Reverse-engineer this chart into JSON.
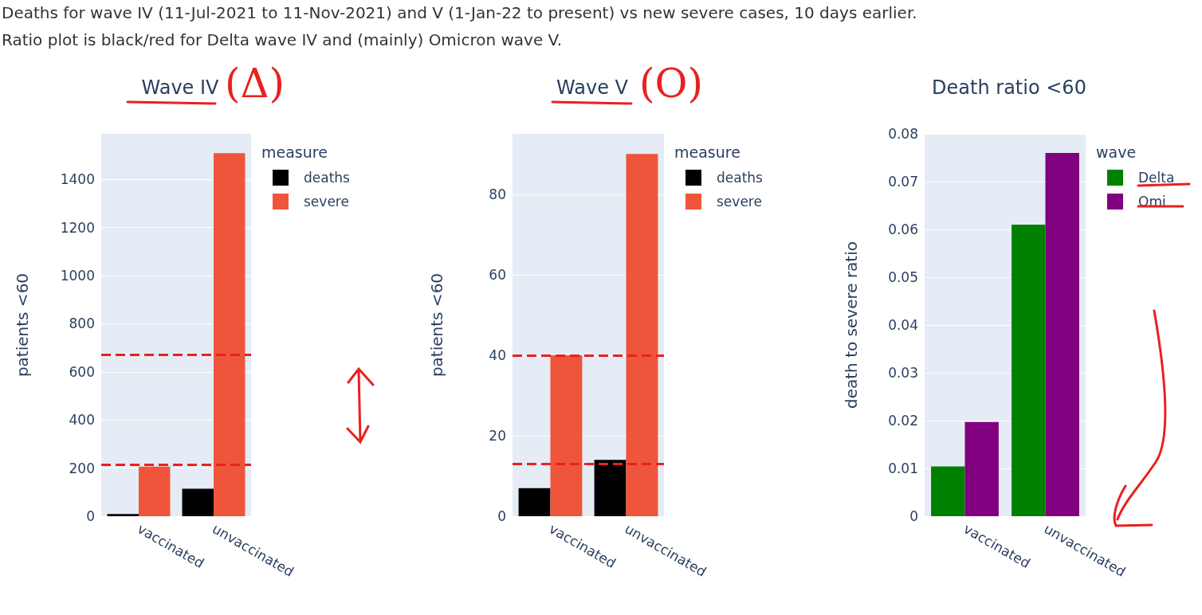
{
  "chart_data": [
    {
      "type": "other",
      "annotations": [
        "Deaths for wave IV (11-Jul-2021 to 11-Nov-2021) and V (1-Jan-22 to present) vs new severe cases, 10 days earlier.",
        "Ratio plot is black/red for Delta wave IV and (mainly) Omicron wave V."
      ]
    },
    {
      "type": "bar",
      "title": "Wave IV",
      "annotations": [
        "(Δ)"
      ],
      "ylabel": "patients <60",
      "legend_title": "measure",
      "legend": "top right",
      "grid": "y",
      "categories": [
        "vaccinated",
        "unvaccinated"
      ],
      "series": [
        {
          "name": "deaths",
          "color": "#000000",
          "values": [
            9,
            114
          ]
        },
        {
          "name": "severe",
          "color": "#ef553b",
          "values": [
            206,
            1510
          ]
        }
      ],
      "ylim": [
        0,
        1590
      ],
      "yticks": [
        0,
        200,
        400,
        600,
        800,
        1000,
        1200,
        1400
      ],
      "ref_lines": [
        {
          "axis": "y",
          "value": 671,
          "color": "#e8211f",
          "line_style": "dashed"
        },
        {
          "axis": "y",
          "value": 213,
          "color": "#e8211f",
          "line_style": "dashed"
        }
      ]
    },
    {
      "type": "bar",
      "title": "Wave V",
      "annotations": [
        "(O)"
      ],
      "ylabel": "patients <60",
      "legend_title": "measure",
      "legend": "top right",
      "grid": "y",
      "categories": [
        "vaccinated",
        "unvaccinated"
      ],
      "series": [
        {
          "name": "deaths",
          "color": "#000000",
          "values": [
            7,
            14
          ]
        },
        {
          "name": "severe",
          "color": "#ef553b",
          "values": [
            40,
            90
          ]
        }
      ],
      "ylim": [
        0,
        95
      ],
      "yticks": [
        0,
        20,
        40,
        60,
        80
      ],
      "ref_lines": [
        {
          "axis": "y",
          "value": 40,
          "color": "#e8211f",
          "line_style": "dashed"
        },
        {
          "axis": "y",
          "value": 13,
          "color": "#e8211f",
          "line_style": "dashed"
        }
      ]
    },
    {
      "type": "bar",
      "title": "Death ratio <60",
      "ylabel": "death to severe ratio",
      "legend_title": "wave",
      "legend": "top right",
      "grid": "y",
      "categories": [
        "vaccinated",
        "unvaccinated"
      ],
      "series": [
        {
          "name": "Delta",
          "color": "#008000",
          "values": [
            0.0104,
            0.061
          ]
        },
        {
          "name": "Omi",
          "color": "#800080",
          "values": [
            0.0197,
            0.076
          ]
        }
      ],
      "ylim": [
        0,
        0.08
      ],
      "yticks": [
        0,
        0.01,
        0.02,
        0.03,
        0.04,
        0.05,
        0.06,
        0.07,
        0.08
      ]
    }
  ]
}
